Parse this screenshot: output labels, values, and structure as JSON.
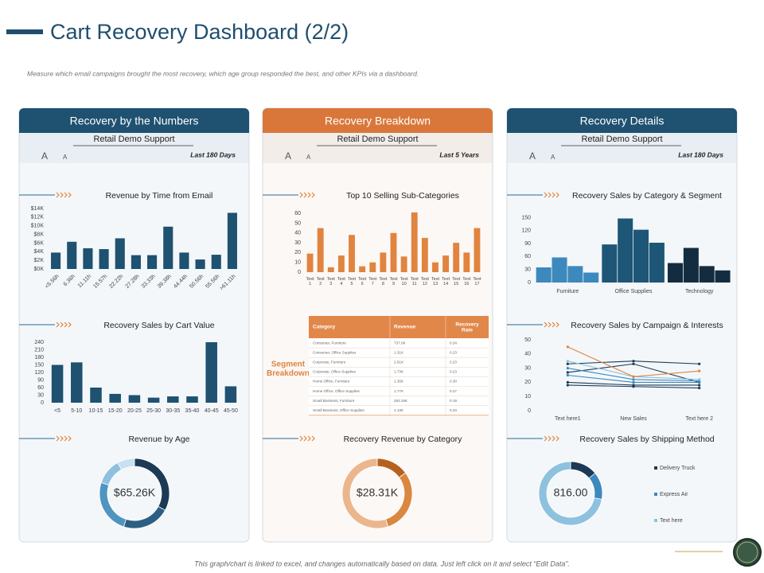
{
  "title": "Cart Recovery Dashboard (2/2)",
  "subtitle": "Measure which email campaigns brought the most recovery, which age group responded the best, and other KPIs via a dashboard.",
  "footer": "This graph/chart is linked to excel, and changes automatically based on data. Just left click on it and select “Edit Data”.",
  "panels": [
    {
      "heading": "Recovery by the Numbers",
      "source": "Retail Demo Support",
      "font_controls": [
        "A",
        "A"
      ],
      "period": "Last 180 Days"
    },
    {
      "heading": "Recovery Breakdown",
      "source": "Retail Demo Support",
      "font_controls": [
        "A",
        "A"
      ],
      "period": "Last 5 Years"
    },
    {
      "heading": "Recovery Details",
      "source": "Retail Demo Support",
      "font_controls": [
        "A",
        "A"
      ],
      "period": "Last 180 Days"
    }
  ],
  "table": {
    "label": "Segment Breakdown",
    "columns": [
      "Category",
      "Revenue",
      "Recovery Rate"
    ],
    "rows": [
      [
        "Consumer, Furniture",
        "737.0K",
        "0.34"
      ],
      [
        "Consumer, Office Supplies",
        "1.31K",
        "0.23"
      ],
      [
        "Corporate, Furniture",
        "2.61K",
        "0.23"
      ],
      [
        "Corporate, Office Supplies",
        "1.73K",
        "0.23"
      ],
      [
        "Home Office, Furniture",
        "1.36K",
        "0.30"
      ],
      [
        "Home Office, Office Supplies",
        "1.77K",
        "0.27"
      ],
      [
        "Small Business, Furniture",
        "282.34K",
        "0.19"
      ],
      [
        "Small Business, Office Supplies",
        "2.13K",
        "0.33"
      ]
    ]
  },
  "chart_data": [
    {
      "type": "bar",
      "title": "Revenue by Time from Email",
      "color": "#1f5170",
      "categories": [
        "<5.56h",
        "6.36h",
        "11.11h",
        "15.57h",
        "22.22h",
        "27.28h",
        "33.33h",
        "39.38h",
        "44.44h",
        "50.56h",
        "55.56h",
        ">61.11h"
      ],
      "values": [
        3.8,
        6.3,
        4.8,
        4.6,
        7.1,
        3.2,
        3.2,
        9.8,
        3.8,
        2.2,
        3.3,
        13
      ],
      "ylim": [
        0,
        14
      ],
      "yticks": [
        {
          "value": 0,
          "label": "$0K"
        },
        {
          "value": 2,
          "label": "$2K"
        },
        {
          "value": 4,
          "label": "$4K"
        },
        {
          "value": 6,
          "label": "$6K"
        },
        {
          "value": 8,
          "label": "$8K"
        },
        {
          "value": 10,
          "label": "$10K"
        },
        {
          "value": 12,
          "label": "$12K"
        },
        {
          "value": 14,
          "label": "$14K"
        }
      ],
      "rotate_labels": true
    },
    {
      "type": "bar",
      "title": "Recovery Sales by Cart Value",
      "color": "#1f5170",
      "categories": [
        "<5",
        "5-10",
        "10-15",
        "15-20",
        "20-25",
        "25-30",
        "30-35",
        "35-40",
        "40-45",
        "45-50"
      ],
      "values": [
        150,
        160,
        60,
        35,
        30,
        20,
        25,
        25,
        240,
        65
      ],
      "ylim": [
        0,
        240
      ],
      "yticks": [
        0,
        30,
        60,
        90,
        120,
        150,
        180,
        210,
        240
      ]
    },
    {
      "type": "donut",
      "title": "Revenue by Age",
      "center_label": "$65.26K",
      "values": [
        33,
        22,
        25,
        12,
        8
      ],
      "colors": [
        "#1c3a56",
        "#2d5f84",
        "#4f95c0",
        "#8ec1de",
        "#c8e0f1"
      ]
    },
    {
      "type": "bar",
      "title": "Top 10 Selling Sub-Categories",
      "color": "#e0843f",
      "categories": [
        "Text 1",
        "Text 2",
        "Text 3",
        "Text 4",
        "Text 5",
        "Text 6",
        "Text 7",
        "Text 8",
        "Text 9",
        "Text 10",
        "Text 11",
        "Text 12",
        "Text 13",
        "Text 14",
        "Text 15",
        "Text 16",
        "Text 17"
      ],
      "values": [
        19,
        45,
        5,
        17,
        38,
        6,
        10,
        20,
        40,
        16,
        61,
        35,
        10,
        17,
        30,
        20,
        45
      ],
      "ylim": [
        0,
        65
      ],
      "yticks": [
        0,
        10,
        20,
        30,
        40,
        50,
        60
      ],
      "split_labels": true
    },
    {
      "type": "donut",
      "title": "Recovery Revenue by Category",
      "center_label": "$28.31K",
      "values": [
        15,
        30,
        55
      ],
      "colors": [
        "#b5621f",
        "#da8740",
        "#ebb68d"
      ]
    },
    {
      "type": "grouped_bar",
      "title": "Recovery Sales by Category & Segment",
      "categories": [
        "Furniture",
        "Office Supplies",
        "Technology"
      ],
      "category_colors": [
        "#3d89bd",
        "#1d5677",
        "#132c40"
      ],
      "series": [
        {
          "values": [
            35,
            88,
            45
          ]
        },
        {
          "values": [
            58,
            148,
            80
          ]
        },
        {
          "values": [
            38,
            122,
            38
          ]
        },
        {
          "values": [
            23,
            92,
            28
          ]
        }
      ],
      "ylim": [
        0,
        160
      ],
      "yticks": [
        0,
        30,
        60,
        90,
        120,
        150
      ]
    },
    {
      "type": "line",
      "title": "Recovery Sales by Campaign & Interests",
      "categories": [
        "Text here1",
        "New Sales",
        "Text here 2"
      ],
      "series": [
        {
          "color": "#1c3a56",
          "values": [
            33,
            35,
            33
          ]
        },
        {
          "color": "#1c3a56",
          "values": [
            27,
            33,
            20
          ]
        },
        {
          "color": "#1c3a56",
          "values": [
            20,
            18,
            18
          ]
        },
        {
          "color": "#1c3a56",
          "values": [
            18,
            17,
            16
          ]
        },
        {
          "color": "#3d89bd",
          "values": [
            30,
            22,
            21
          ]
        },
        {
          "color": "#3d89bd",
          "values": [
            25,
            20,
            20
          ]
        },
        {
          "color": "#8ec1de",
          "values": [
            35,
            24,
            22
          ]
        },
        {
          "color": "#e0843f",
          "values": [
            45,
            24,
            28
          ]
        }
      ],
      "ylim": [
        0,
        50
      ],
      "yticks": [
        0,
        10,
        20,
        30,
        40,
        50
      ]
    },
    {
      "type": "donut",
      "title": "Recovery Sales by Shipping Method",
      "center_label": "816.00",
      "categories": [
        "Delivery Truck",
        "Express Air",
        "Text here"
      ],
      "values": [
        14,
        14,
        72
      ],
      "colors": [
        "#1c3a56",
        "#3d89bd",
        "#8ec1de"
      ],
      "legend": true
    }
  ]
}
